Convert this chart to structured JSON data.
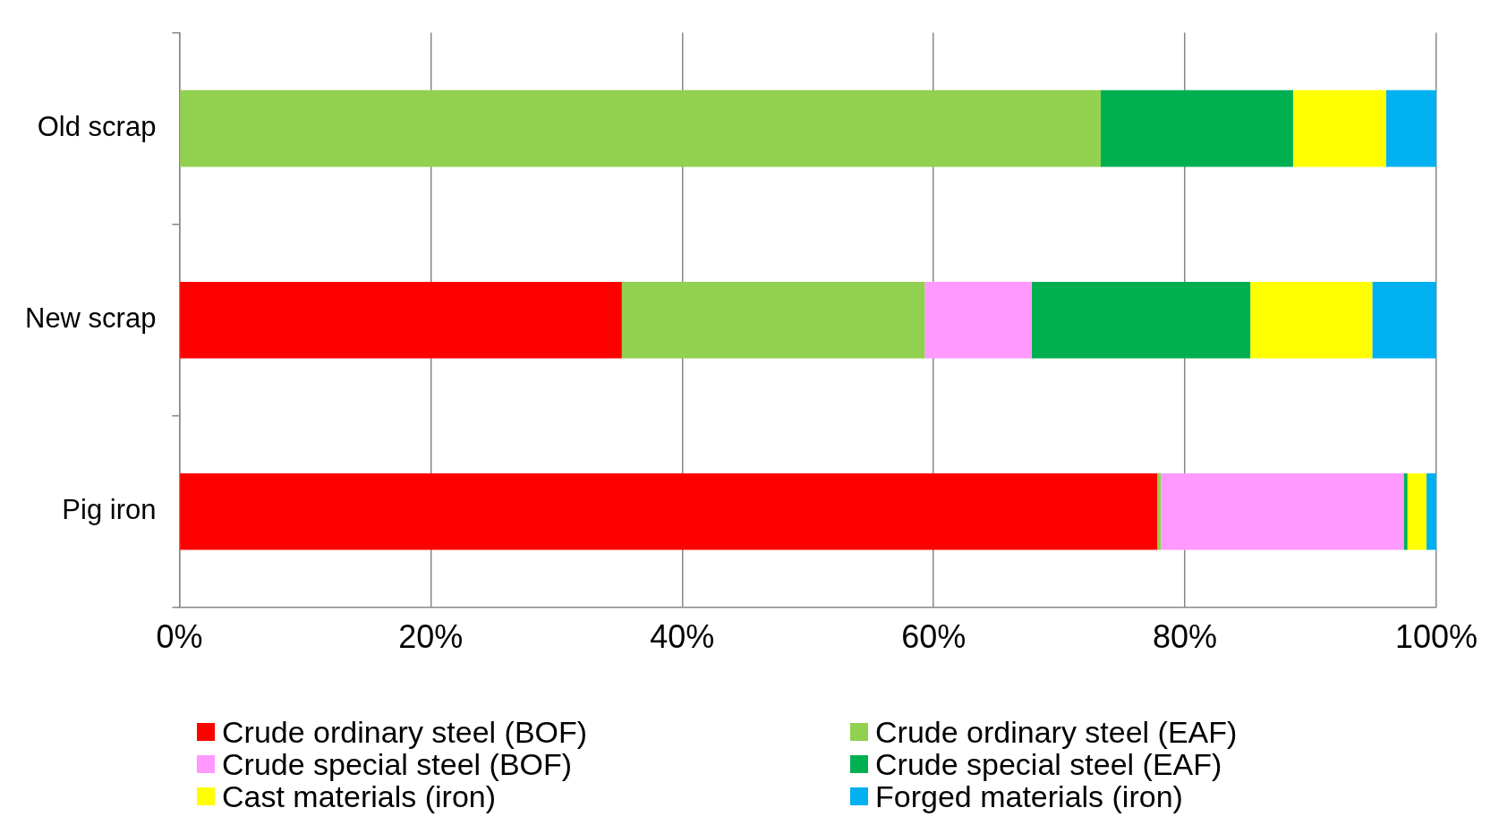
{
  "chart_data": {
    "type": "bar",
    "orientation": "horizontal",
    "stacked": true,
    "categories": [
      "Old scrap",
      "New scrap",
      "Pig iron"
    ],
    "series": [
      {
        "name": "Crude ordinary steel (BOF)",
        "color": "#ff0000",
        "values": [
          0,
          35.2,
          77.8
        ]
      },
      {
        "name": "Crude ordinary steel (EAF)",
        "color": "#92d050",
        "values": [
          73.3,
          24.1,
          0.3
        ]
      },
      {
        "name": "Crude special steel (BOF)",
        "color": "#ff99ff",
        "values": [
          0,
          8.5,
          19.3
        ]
      },
      {
        "name": "Crude special steel (EAF)",
        "color": "#00b050",
        "values": [
          15.3,
          17.4,
          0.3
        ]
      },
      {
        "name": "Cast materials (iron)",
        "color": "#ffff00",
        "values": [
          7.4,
          9.7,
          1.5
        ]
      },
      {
        "name": "Forged materials (iron)",
        "color": "#00b0f0",
        "values": [
          4.0,
          5.1,
          0.8
        ]
      }
    ],
    "xlim": [
      0,
      100
    ],
    "xticks": [
      {
        "value": 0,
        "label": "0%"
      },
      {
        "value": 20,
        "label": "20%"
      },
      {
        "value": 40,
        "label": "40%"
      },
      {
        "value": 60,
        "label": "60%"
      },
      {
        "value": 80,
        "label": "80%"
      },
      {
        "value": 100,
        "label": "100%"
      }
    ],
    "grid": "x",
    "legend": "bottom"
  }
}
